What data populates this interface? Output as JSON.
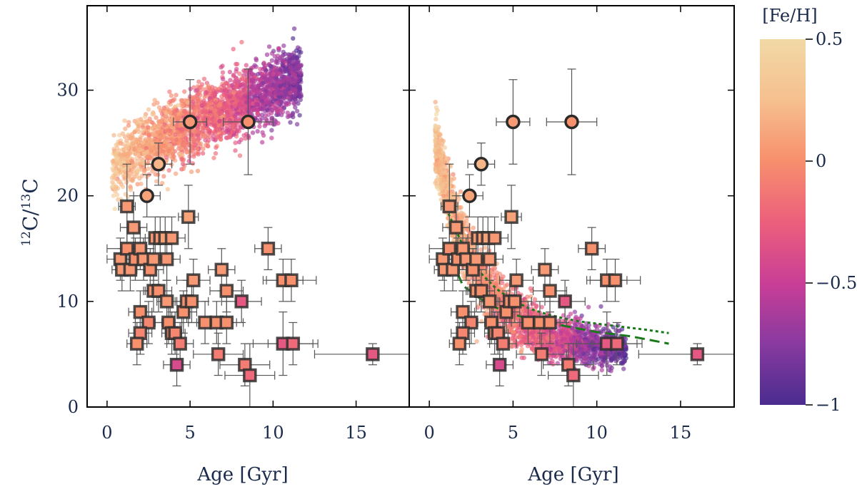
{
  "chart_data": {
    "type": "scatter",
    "colorbar": {
      "label": "[Fe/H]",
      "range": [
        -1,
        0.5
      ],
      "ticks": [
        0.5,
        0,
        -0.5,
        -1
      ],
      "tick_labels": [
        "0.5",
        "0",
        "−0.5",
        "−1"
      ],
      "colormap": [
        "#4a2c8f",
        "#8a3aa0",
        "#c83e96",
        "#ec5f7c",
        "#f7906d",
        "#f6bf8e",
        "#f1d9a6"
      ]
    },
    "ylabel": {
      "base1": "12",
      "main1": "C/",
      "base2": "13",
      "main2": "C"
    },
    "yticks": [
      0,
      10,
      20,
      30
    ],
    "ylim": [
      0,
      38
    ],
    "xlim": [
      -1.2,
      18.2
    ],
    "xticks": [
      0,
      5,
      10,
      15
    ],
    "panels": [
      {
        "name": "left",
        "xlabel": "Age [Gyr]",
        "model_cloud": {
          "shape": "band",
          "feh_trend": "young metal-rich, old metal-poor",
          "description": "ratio increasing with age from ~22 at 0.5 Gyr to ~32 at 11.5 Gyr"
        },
        "model_lines": []
      },
      {
        "name": "right",
        "xlabel": "Age [Gyr]",
        "model_cloud": {
          "shape": "decay",
          "feh_trend": "young metal-rich, old metal-poor",
          "description": "ratio decreasing with age from ~24 at 0.4 Gyr to ~6 at 11.5 Gyr"
        },
        "model_lines": [
          {
            "style": "dashed",
            "color": "#1a7a1a",
            "x": [
              1.0,
              2.0,
              3.0,
              4.0,
              5.0,
              6.0,
              7.0,
              8.0,
              9.0,
              10.0,
              11.0,
              12.0,
              13.0,
              14.3
            ],
            "y": [
              15.2,
              11.5,
              10.3,
              9.4,
              8.8,
              8.3,
              8.0,
              7.7,
              7.4,
              7.1,
              6.9,
              6.7,
              6.4,
              6.0
            ]
          },
          {
            "style": "dotted",
            "color": "#1a7a1a",
            "x": [
              1.0,
              2.0,
              3.0,
              4.0,
              5.0,
              6.0,
              7.0,
              8.0,
              9.0,
              10.0,
              11.0,
              12.0,
              13.0,
              14.3
            ],
            "y": [
              18.8,
              15.3,
              12.8,
              11.2,
              10.1,
              9.3,
              8.8,
              8.4,
              8.1,
              7.9,
              7.7,
              7.5,
              7.3,
              7.0
            ]
          }
        ]
      }
    ],
    "observations_circles": [
      {
        "age": 5.0,
        "ratio": 27,
        "xerr": 1.0,
        "yerr": [
          4,
          4
        ],
        "feh": 0.05
      },
      {
        "age": 8.5,
        "ratio": 27,
        "xerr": 1.5,
        "yerr": [
          5,
          5
        ],
        "feh": 0.0
      },
      {
        "age": 3.1,
        "ratio": 23,
        "xerr": 0.8,
        "yerr": [
          2,
          2
        ],
        "feh": 0.2
      },
      {
        "age": 2.4,
        "ratio": 20,
        "xerr": 0.8,
        "yerr": [
          2,
          2
        ],
        "feh": 0.1
      }
    ],
    "observations_squares": [
      {
        "age": 1.2,
        "ratio": 19,
        "xerr": 0.5,
        "yerr": [
          5,
          4
        ],
        "feh": 0.05
      },
      {
        "age": 1.6,
        "ratio": 17,
        "xerr": 0.8,
        "yerr": [
          3,
          3
        ],
        "feh": 0.05
      },
      {
        "age": 0.8,
        "ratio": 14,
        "xerr": 0.8,
        "yerr": [
          2,
          2
        ],
        "feh": 0.05
      },
      {
        "age": 0.9,
        "ratio": 13,
        "xerr": 0.6,
        "yerr": [
          2,
          2
        ],
        "feh": 0.05
      },
      {
        "age": 1.2,
        "ratio": 15,
        "xerr": 1.2,
        "yerr": [
          2,
          2
        ],
        "feh": 0.0
      },
      {
        "age": 1.4,
        "ratio": 13,
        "xerr": 0.8,
        "yerr": [
          2,
          2
        ],
        "feh": 0.05
      },
      {
        "age": 1.7,
        "ratio": 14,
        "xerr": 1.0,
        "yerr": [
          2,
          2
        ],
        "feh": 0.0
      },
      {
        "age": 2.0,
        "ratio": 15,
        "xerr": 0.8,
        "yerr": [
          2,
          2
        ],
        "feh": 0.05
      },
      {
        "age": 2.2,
        "ratio": 14,
        "xerr": 0.8,
        "yerr": [
          2,
          2
        ],
        "feh": 0.05
      },
      {
        "age": 2.6,
        "ratio": 13,
        "xerr": 0.8,
        "yerr": [
          2,
          2
        ],
        "feh": 0.0
      },
      {
        "age": 2.8,
        "ratio": 14,
        "xerr": 0.8,
        "yerr": [
          2,
          2
        ],
        "feh": 0.05
      },
      {
        "age": 2.9,
        "ratio": 16,
        "xerr": 0.6,
        "yerr": [
          2,
          2
        ],
        "feh": 0.05
      },
      {
        "age": 3.2,
        "ratio": 16,
        "xerr": 0.6,
        "yerr": [
          2,
          2
        ],
        "feh": 0.05
      },
      {
        "age": 3.5,
        "ratio": 16,
        "xerr": 0.6,
        "yerr": [
          2,
          2
        ],
        "feh": 0.1
      },
      {
        "age": 3.9,
        "ratio": 16,
        "xerr": 0.8,
        "yerr": [
          2,
          2
        ],
        "feh": 0.05
      },
      {
        "age": 3.6,
        "ratio": 14,
        "xerr": 0.8,
        "yerr": [
          2,
          2
        ],
        "feh": 0.05
      },
      {
        "age": 4.9,
        "ratio": 18,
        "xerr": 0.6,
        "yerr": [
          3,
          3
        ],
        "feh": 0.1
      },
      {
        "age": 2.8,
        "ratio": 11,
        "xerr": 0.6,
        "yerr": [
          2,
          2
        ],
        "feh": 0.0
      },
      {
        "age": 3.1,
        "ratio": 11,
        "xerr": 0.8,
        "yerr": [
          2,
          2
        ],
        "feh": 0.0
      },
      {
        "age": 2.0,
        "ratio": 9,
        "xerr": 0.7,
        "yerr": [
          2,
          2
        ],
        "feh": 0.0
      },
      {
        "age": 2.5,
        "ratio": 8,
        "xerr": 0.8,
        "yerr": [
          2,
          2
        ],
        "feh": -0.05
      },
      {
        "age": 2.0,
        "ratio": 7,
        "xerr": 0.7,
        "yerr": [
          2,
          2
        ],
        "feh": -0.05
      },
      {
        "age": 1.8,
        "ratio": 6,
        "xerr": 0.6,
        "yerr": [
          2,
          2
        ],
        "feh": 0.0
      },
      {
        "age": 3.6,
        "ratio": 10,
        "xerr": 0.6,
        "yerr": [
          2,
          2
        ],
        "feh": 0.05
      },
      {
        "age": 3.7,
        "ratio": 8,
        "xerr": 0.8,
        "yerr": [
          2,
          2
        ],
        "feh": 0.0
      },
      {
        "age": 3.9,
        "ratio": 7,
        "xerr": 0.6,
        "yerr": [
          2,
          2
        ],
        "feh": 0.0
      },
      {
        "age": 4.1,
        "ratio": 7,
        "xerr": 0.6,
        "yerr": [
          2,
          2
        ],
        "feh": -0.05
      },
      {
        "age": 4.4,
        "ratio": 6,
        "xerr": 0.8,
        "yerr": [
          2,
          2
        ],
        "feh": -0.1
      },
      {
        "age": 4.6,
        "ratio": 9,
        "xerr": 0.8,
        "yerr": [
          2,
          2
        ],
        "feh": 0.0
      },
      {
        "age": 4.8,
        "ratio": 10,
        "xerr": 0.6,
        "yerr": [
          2,
          2
        ],
        "feh": 0.0
      },
      {
        "age": 5.1,
        "ratio": 10,
        "xerr": 1.0,
        "yerr": [
          2,
          2
        ],
        "feh": 0.0
      },
      {
        "age": 5.2,
        "ratio": 12,
        "xerr": 1.0,
        "yerr": [
          2,
          2
        ],
        "feh": 0.05
      },
      {
        "age": 5.9,
        "ratio": 8,
        "xerr": 1.0,
        "yerr": [
          2,
          2
        ],
        "feh": 0.0
      },
      {
        "age": 6.6,
        "ratio": 8,
        "xerr": 1.2,
        "yerr": [
          2,
          2
        ],
        "feh": 0.0
      },
      {
        "age": 6.9,
        "ratio": 13,
        "xerr": 0.8,
        "yerr": [
          2,
          2
        ],
        "feh": 0.05
      },
      {
        "age": 7.2,
        "ratio": 11,
        "xerr": 1.0,
        "yerr": [
          2,
          2
        ],
        "feh": 0.0
      },
      {
        "age": 7.2,
        "ratio": 8,
        "xerr": 1.0,
        "yerr": [
          2,
          2
        ],
        "feh": 0.0
      },
      {
        "age": 6.7,
        "ratio": 5,
        "xerr": 1.5,
        "yerr": [
          2,
          2
        ],
        "feh": -0.1
      },
      {
        "age": 4.2,
        "ratio": 4,
        "xerr": 0.8,
        "yerr": [
          2,
          2
        ],
        "feh": -0.4
      },
      {
        "age": 8.1,
        "ratio": 10,
        "xerr": 1.2,
        "yerr": [
          2,
          2
        ],
        "feh": -0.3
      },
      {
        "age": 8.3,
        "ratio": 4,
        "xerr": 1.5,
        "yerr": [
          2,
          2
        ],
        "feh": -0.1
      },
      {
        "age": 8.6,
        "ratio": 3,
        "xerr": 1.5,
        "yerr": [
          3,
          3
        ],
        "feh": -0.2
      },
      {
        "age": 9.7,
        "ratio": 15,
        "xerr": 0.8,
        "yerr": [
          2,
          2
        ],
        "feh": 0.0
      },
      {
        "age": 10.6,
        "ratio": 12,
        "xerr": 1.2,
        "yerr": [
          2,
          2
        ],
        "feh": 0.0
      },
      {
        "age": 11.1,
        "ratio": 12,
        "xerr": 1.5,
        "yerr": [
          2,
          2
        ],
        "feh": 0.0
      },
      {
        "age": 10.6,
        "ratio": 6,
        "xerr": 1.8,
        "yerr": [
          3,
          3
        ],
        "feh": -0.3
      },
      {
        "age": 11.2,
        "ratio": 6,
        "xerr": 1.5,
        "yerr": [
          2,
          2
        ],
        "feh": -0.2
      },
      {
        "age": 16.0,
        "ratio": 5,
        "xerr": 3.5,
        "yerr": [
          1,
          1
        ],
        "feh": -0.3
      }
    ]
  }
}
